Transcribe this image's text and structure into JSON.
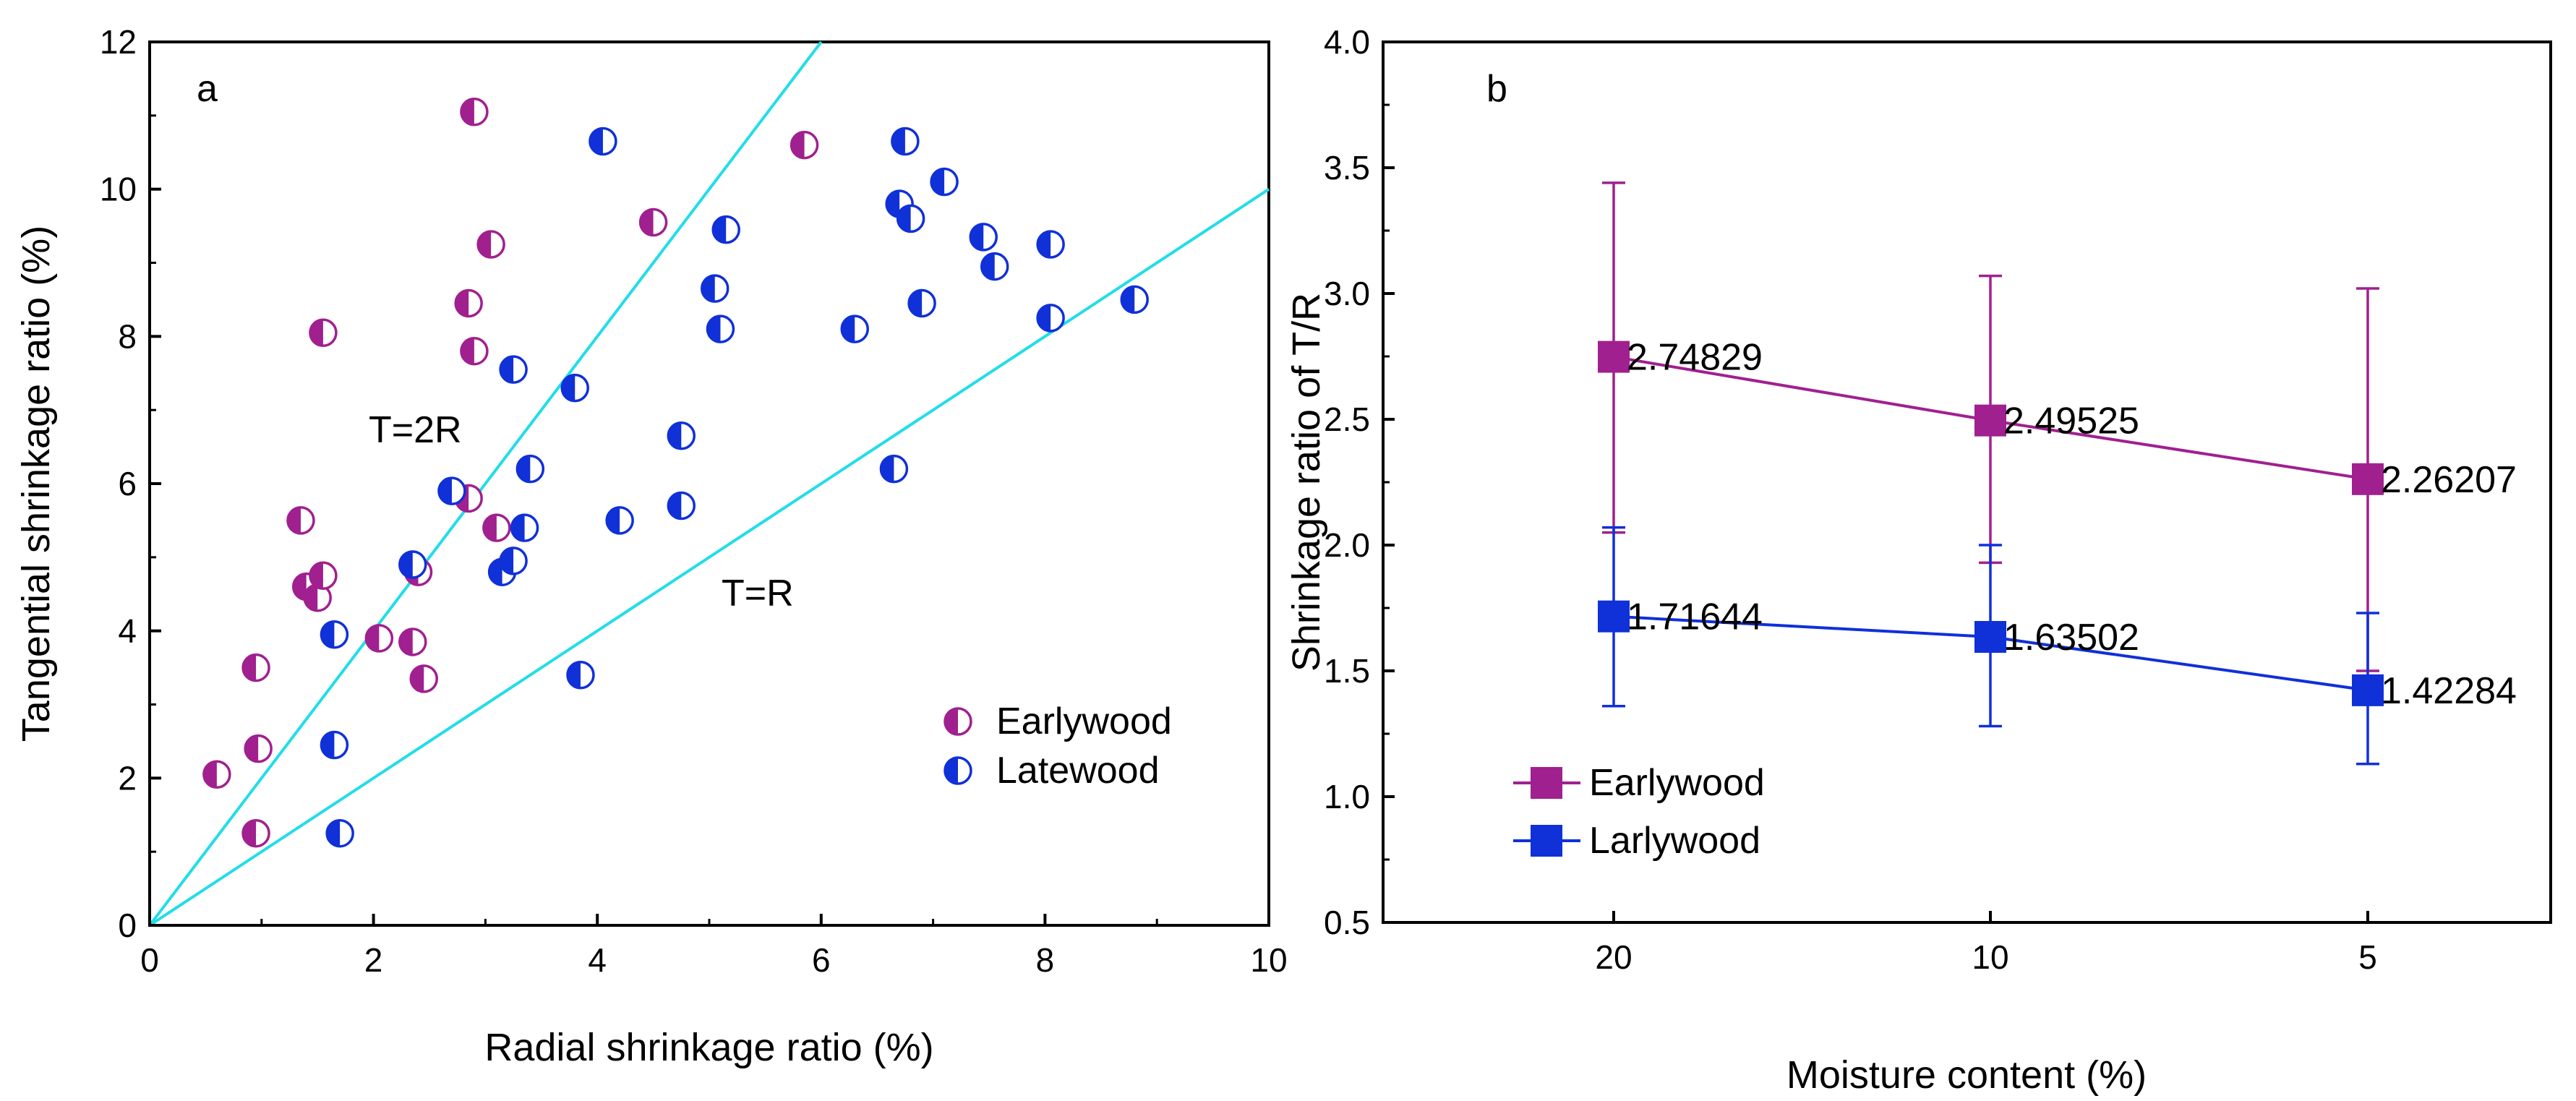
{
  "chart_data": [
    {
      "type": "scatter",
      "panel_label": "a",
      "xlabel": "Radial shrinkage ratio (%)",
      "ylabel": "Tangential shrinkage ratio (%)",
      "xlim": [
        0,
        10
      ],
      "ylim": [
        0,
        12
      ],
      "xticks": [
        0,
        2,
        4,
        6,
        8,
        10
      ],
      "yticks": [
        0,
        2,
        4,
        6,
        8,
        10,
        12
      ],
      "grid": false,
      "legend_position": "bottom-right",
      "reference_lines": [
        {
          "label": "T=2R",
          "slope": 2,
          "color": "#22dde8"
        },
        {
          "label": "T=R",
          "slope": 1,
          "color": "#22dde8"
        }
      ],
      "series": [
        {
          "name": "Earlywood",
          "color": "#a0208f",
          "marker": "half-filled-left",
          "points": [
            [
              0.6,
              2.05
            ],
            [
              0.95,
              1.25
            ],
            [
              0.97,
              2.4
            ],
            [
              0.95,
              3.5
            ],
            [
              1.35,
              5.5
            ],
            [
              1.4,
              4.6
            ],
            [
              1.5,
              4.45
            ],
            [
              1.55,
              4.75
            ],
            [
              1.55,
              8.05
            ],
            [
              2.05,
              3.9
            ],
            [
              2.35,
              3.85
            ],
            [
              2.4,
              4.8
            ],
            [
              2.45,
              3.35
            ],
            [
              2.85,
              5.8
            ],
            [
              2.85,
              8.45
            ],
            [
              2.9,
              7.8
            ],
            [
              2.9,
              11.05
            ],
            [
              3.05,
              9.25
            ],
            [
              3.1,
              5.4
            ],
            [
              4.5,
              9.55
            ],
            [
              5.85,
              10.6
            ]
          ]
        },
        {
          "name": "Latewood",
          "color": "#1030d8",
          "marker": "half-filled-left",
          "points": [
            [
              1.7,
              1.25
            ],
            [
              1.65,
              2.45
            ],
            [
              1.65,
              3.95
            ],
            [
              2.35,
              4.9
            ],
            [
              2.7,
              5.9
            ],
            [
              3.15,
              4.8
            ],
            [
              3.25,
              4.95
            ],
            [
              3.25,
              7.55
            ],
            [
              3.35,
              5.4
            ],
            [
              3.4,
              6.2
            ],
            [
              3.8,
              7.3
            ],
            [
              3.85,
              3.4
            ],
            [
              4.05,
              10.65
            ],
            [
              4.2,
              5.5
            ],
            [
              4.75,
              5.7
            ],
            [
              4.75,
              6.65
            ],
            [
              5.05,
              8.65
            ],
            [
              5.1,
              8.1
            ],
            [
              5.15,
              9.45
            ],
            [
              6.3,
              8.1
            ],
            [
              6.65,
              6.2
            ],
            [
              6.7,
              9.8
            ],
            [
              6.75,
              10.65
            ],
            [
              6.8,
              9.6
            ],
            [
              6.9,
              8.45
            ],
            [
              7.1,
              10.1
            ],
            [
              7.45,
              9.35
            ],
            [
              7.55,
              8.95
            ],
            [
              8.05,
              9.25
            ],
            [
              8.05,
              8.25
            ],
            [
              8.8,
              8.5
            ]
          ]
        }
      ]
    },
    {
      "type": "line",
      "panel_label": "b",
      "xlabel": "Moisture content (%)",
      "ylabel": "Shrinkage ratio of T/R",
      "categories": [
        "20",
        "10",
        "5"
      ],
      "ylim": [
        0.5,
        4.0
      ],
      "yticks": [
        "0.5",
        "1.0",
        "1.5",
        "2.0",
        "2.5",
        "3.0",
        "3.5",
        "4.0"
      ],
      "grid": false,
      "legend_position": "bottom-left",
      "series": [
        {
          "name": "Earlywood",
          "color": "#a0208f",
          "values": [
            2.74829,
            2.49525,
            2.26207
          ],
          "value_labels": [
            "2.74829",
            "2.49525",
            "2.26207"
          ],
          "error_low": [
            2.05,
            1.93,
            1.5
          ],
          "error_high": [
            3.44,
            3.07,
            3.02
          ]
        },
        {
          "name": "Larlywood",
          "color": "#1030d8",
          "values": [
            1.71644,
            1.63502,
            1.42284
          ],
          "value_labels": [
            "1.71644",
            "1.63502",
            "1.42284"
          ],
          "error_low": [
            1.36,
            1.28,
            1.13
          ],
          "error_high": [
            2.07,
            2.0,
            1.73
          ]
        }
      ]
    }
  ]
}
